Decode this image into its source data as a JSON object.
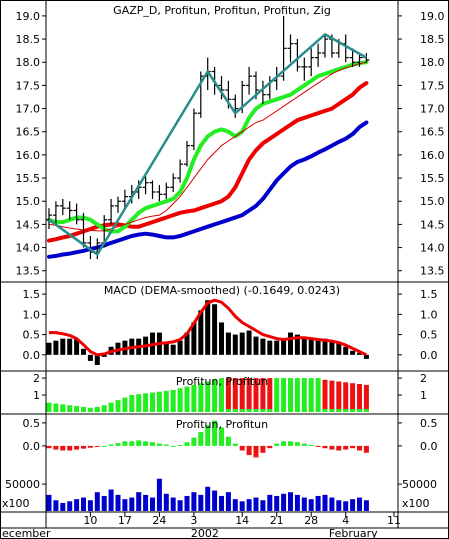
{
  "chart_data": [
    {
      "type": "line",
      "panel": "price",
      "title": "GAZP_D, Profitun, Profitun, Profitun, Zig",
      "ylim": [
        13.3,
        19.3
      ],
      "yticks": [
        "13.5",
        "14.0",
        "14.5",
        "15.0",
        "15.5",
        "16.0",
        "16.5",
        "17.0",
        "17.5",
        "18.0",
        "18.5",
        "19.0"
      ],
      "grid": false,
      "bars": [
        {
          "o": 14.6,
          "h": 14.85,
          "l": 14.4,
          "c": 14.7
        },
        {
          "o": 14.7,
          "h": 15.0,
          "l": 14.5,
          "c": 14.9
        },
        {
          "o": 14.9,
          "h": 15.05,
          "l": 14.7,
          "c": 14.85
        },
        {
          "o": 14.85,
          "h": 15.0,
          "l": 14.6,
          "c": 14.8
        },
        {
          "o": 14.8,
          "h": 14.95,
          "l": 14.5,
          "c": 14.6
        },
        {
          "o": 14.6,
          "h": 14.75,
          "l": 14.0,
          "c": 14.1
        },
        {
          "o": 14.1,
          "h": 14.25,
          "l": 13.75,
          "c": 13.9
        },
        {
          "o": 13.9,
          "h": 14.2,
          "l": 13.75,
          "c": 14.1
        },
        {
          "o": 14.1,
          "h": 14.7,
          "l": 14.0,
          "c": 14.6
        },
        {
          "o": 14.6,
          "h": 15.05,
          "l": 14.5,
          "c": 14.9
        },
        {
          "o": 14.9,
          "h": 15.1,
          "l": 14.75,
          "c": 15.0
        },
        {
          "o": 15.0,
          "h": 15.25,
          "l": 14.85,
          "c": 15.1
        },
        {
          "o": 15.1,
          "h": 15.35,
          "l": 14.95,
          "c": 15.2
        },
        {
          "o": 15.2,
          "h": 15.45,
          "l": 15.05,
          "c": 15.3
        },
        {
          "o": 15.3,
          "h": 15.55,
          "l": 15.15,
          "c": 15.4
        },
        {
          "o": 15.4,
          "h": 15.45,
          "l": 15.05,
          "c": 15.2
        },
        {
          "o": 15.2,
          "h": 15.35,
          "l": 15.0,
          "c": 15.15
        },
        {
          "o": 15.15,
          "h": 15.4,
          "l": 15.05,
          "c": 15.3
        },
        {
          "o": 15.3,
          "h": 15.6,
          "l": 15.2,
          "c": 15.5
        },
        {
          "o": 15.5,
          "h": 15.9,
          "l": 15.4,
          "c": 15.8
        },
        {
          "o": 15.8,
          "h": 16.3,
          "l": 15.75,
          "c": 16.2
        },
        {
          "o": 16.2,
          "h": 17.0,
          "l": 16.1,
          "c": 16.9
        },
        {
          "o": 16.9,
          "h": 17.8,
          "l": 16.8,
          "c": 17.7
        },
        {
          "o": 17.7,
          "h": 18.1,
          "l": 17.4,
          "c": 17.8
        },
        {
          "o": 17.8,
          "h": 17.9,
          "l": 17.3,
          "c": 17.5
        },
        {
          "o": 17.5,
          "h": 17.7,
          "l": 17.2,
          "c": 17.4
        },
        {
          "o": 17.4,
          "h": 17.6,
          "l": 17.0,
          "c": 17.2
        },
        {
          "o": 17.2,
          "h": 17.3,
          "l": 16.8,
          "c": 17.0
        },
        {
          "o": 17.0,
          "h": 17.6,
          "l": 16.9,
          "c": 17.5
        },
        {
          "o": 17.5,
          "h": 17.9,
          "l": 17.3,
          "c": 17.7
        },
        {
          "o": 17.7,
          "h": 17.8,
          "l": 17.2,
          "c": 17.4
        },
        {
          "o": 17.4,
          "h": 17.6,
          "l": 17.1,
          "c": 17.3
        },
        {
          "o": 17.3,
          "h": 17.7,
          "l": 17.2,
          "c": 17.6
        },
        {
          "o": 17.6,
          "h": 17.9,
          "l": 17.4,
          "c": 17.7
        },
        {
          "o": 17.7,
          "h": 19.0,
          "l": 17.6,
          "c": 18.3
        },
        {
          "o": 18.3,
          "h": 18.6,
          "l": 18.0,
          "c": 18.4
        },
        {
          "o": 18.4,
          "h": 18.5,
          "l": 17.8,
          "c": 17.9
        },
        {
          "o": 17.9,
          "h": 18.1,
          "l": 17.6,
          "c": 17.9
        },
        {
          "o": 17.9,
          "h": 18.3,
          "l": 17.7,
          "c": 18.1
        },
        {
          "o": 18.1,
          "h": 18.4,
          "l": 17.9,
          "c": 18.2
        },
        {
          "o": 18.2,
          "h": 18.6,
          "l": 18.1,
          "c": 18.5
        },
        {
          "o": 18.5,
          "h": 18.6,
          "l": 18.1,
          "c": 18.2
        },
        {
          "o": 18.2,
          "h": 18.5,
          "l": 18.1,
          "c": 18.4
        },
        {
          "o": 18.4,
          "h": 18.6,
          "l": 18.0,
          "c": 18.1
        },
        {
          "o": 18.1,
          "h": 18.3,
          "l": 17.9,
          "c": 18.0
        },
        {
          "o": 18.0,
          "h": 18.2,
          "l": 17.9,
          "c": 18.1
        },
        {
          "o": 18.1,
          "h": 18.2,
          "l": 18.0,
          "c": 18.05
        }
      ],
      "series": [
        {
          "color": "#0000cc",
          "values": [
            13.8,
            13.82,
            13.85,
            13.87,
            13.9,
            13.93,
            13.97,
            14.0,
            14.05,
            14.1,
            14.15,
            14.2,
            14.25,
            14.28,
            14.3,
            14.28,
            14.25,
            14.22,
            14.22,
            14.25,
            14.3,
            14.35,
            14.4,
            14.45,
            14.5,
            14.55,
            14.6,
            14.65,
            14.7,
            14.8,
            14.9,
            15.05,
            15.25,
            15.45,
            15.6,
            15.75,
            15.85,
            15.9,
            15.97,
            16.05,
            16.12,
            16.2,
            16.28,
            16.35,
            16.45,
            16.6,
            16.7
          ]
        },
        {
          "color": "#ee0000",
          "values": [
            14.15,
            14.18,
            14.22,
            14.25,
            14.3,
            14.35,
            14.4,
            14.45,
            14.48,
            14.5,
            14.5,
            14.48,
            14.45,
            14.45,
            14.5,
            14.55,
            14.6,
            14.65,
            14.7,
            14.75,
            14.78,
            14.8,
            14.85,
            14.9,
            14.95,
            15.0,
            15.1,
            15.3,
            15.6,
            15.9,
            16.1,
            16.25,
            16.35,
            16.45,
            16.55,
            16.65,
            16.75,
            16.8,
            16.85,
            16.9,
            16.95,
            17.0,
            17.1,
            17.2,
            17.3,
            17.45,
            17.55
          ]
        },
        {
          "color": "#22ee22",
          "values": [
            14.6,
            14.55,
            14.55,
            14.6,
            14.65,
            14.65,
            14.6,
            14.5,
            14.4,
            14.35,
            14.35,
            14.45,
            14.6,
            14.75,
            14.85,
            14.9,
            14.95,
            15.0,
            15.05,
            15.2,
            15.5,
            15.9,
            16.2,
            16.4,
            16.5,
            16.55,
            16.5,
            16.4,
            16.5,
            16.8,
            17.0,
            17.1,
            17.15,
            17.2,
            17.25,
            17.3,
            17.4,
            17.5,
            17.6,
            17.7,
            17.75,
            17.8,
            17.85,
            17.9,
            17.95,
            17.98,
            18.0
          ]
        },
        {
          "color": "#dd0000",
          "values": [
            14.5,
            14.48,
            14.45,
            14.42,
            14.4,
            14.38,
            14.37,
            14.36,
            14.36,
            14.4,
            14.45,
            14.5,
            14.55,
            14.6,
            14.65,
            14.68,
            14.7,
            14.8,
            14.95,
            15.1,
            15.3,
            15.5,
            15.7,
            15.9,
            16.05,
            16.2,
            16.3,
            16.4,
            16.5,
            16.6,
            16.7,
            16.75,
            16.85,
            16.95,
            17.05,
            17.15,
            17.25,
            17.35,
            17.45,
            17.55,
            17.65,
            17.75,
            17.82,
            17.88,
            17.92,
            17.97,
            18.0
          ]
        },
        {
          "color": "#2a8c8c",
          "zigzag": true,
          "points": [
            [
              0,
              14.6
            ],
            [
              7,
              13.85
            ],
            [
              23,
              17.8
            ],
            [
              27,
              16.9
            ],
            [
              40,
              18.6
            ],
            [
              46,
              18.1
            ]
          ]
        }
      ]
    },
    {
      "type": "bar",
      "panel": "macd",
      "title": "MACD (DEMA-smoothed) (-0.1649, 0.0243)",
      "ylim": [
        -0.35,
        1.75
      ],
      "yticks": [
        "0.0",
        "0.5",
        "1.0",
        "1.5"
      ],
      "values": [
        0.3,
        0.35,
        0.4,
        0.4,
        0.4,
        0.15,
        -0.15,
        -0.25,
        -0.05,
        0.2,
        0.3,
        0.35,
        0.4,
        0.4,
        0.45,
        0.55,
        0.55,
        0.3,
        0.25,
        0.35,
        0.55,
        0.8,
        1.1,
        1.35,
        1.25,
        0.8,
        0.55,
        0.5,
        0.55,
        0.6,
        0.45,
        0.4,
        0.35,
        0.35,
        0.4,
        0.55,
        0.5,
        0.45,
        0.4,
        0.35,
        0.4,
        0.35,
        0.3,
        0.2,
        0.1,
        0.05,
        -0.1
      ],
      "signal": [
        0.55,
        0.55,
        0.52,
        0.48,
        0.4,
        0.25,
        0.08,
        0.0,
        0.02,
        0.08,
        0.12,
        0.15,
        0.18,
        0.2,
        0.22,
        0.25,
        0.28,
        0.3,
        0.32,
        0.38,
        0.52,
        0.78,
        1.05,
        1.28,
        1.35,
        1.3,
        1.15,
        0.95,
        0.8,
        0.7,
        0.6,
        0.5,
        0.45,
        0.4,
        0.38,
        0.4,
        0.42,
        0.42,
        0.4,
        0.38,
        0.36,
        0.34,
        0.3,
        0.24,
        0.16,
        0.08,
        0.0
      ],
      "colors": {
        "bars": "#000000",
        "signal": "#ee0000"
      }
    },
    {
      "type": "bar",
      "panel": "profitun-1",
      "title": "Profitun, Profitun",
      "ylim": [
        0,
        2.3
      ],
      "yticks": [
        "1",
        "2"
      ],
      "values": [
        0.55,
        0.5,
        0.45,
        0.4,
        0.35,
        0.3,
        0.25,
        0.3,
        0.4,
        0.55,
        0.7,
        0.85,
        1.0,
        1.05,
        1.1,
        1.15,
        1.2,
        1.25,
        1.3,
        1.4,
        1.5,
        1.6,
        1.7,
        1.8,
        1.9,
        2.0,
        2.0,
        2.0,
        2.0,
        2.0,
        2.0,
        2.0,
        2.0,
        2.0,
        2.0,
        2.0,
        2.0,
        2.0,
        2.0,
        2.0,
        1.9,
        1.85,
        1.8,
        1.75,
        1.7,
        1.65,
        1.6
      ],
      "colors_by_bar": [
        "g",
        "g",
        "g",
        "g",
        "g",
        "g",
        "g",
        "g",
        "g",
        "g",
        "g",
        "g",
        "g",
        "g",
        "g",
        "g",
        "g",
        "g",
        "g",
        "g",
        "g",
        "g",
        "g",
        "g",
        "g",
        "g",
        "r",
        "r",
        "r",
        "r",
        "r",
        "r",
        "r",
        "g",
        "g",
        "g",
        "g",
        "g",
        "g",
        "g",
        "r",
        "r",
        "r",
        "r",
        "r",
        "r",
        "r"
      ],
      "colors": {
        "g": "#22ee22",
        "r": "#ee1111",
        "base": "#22ee22"
      }
    },
    {
      "type": "bar",
      "panel": "profitun-2",
      "title": "Profitun, Profitun",
      "ylim": [
        -0.35,
        0.65
      ],
      "yticks": [
        "0.0",
        "0.5"
      ],
      "values": [
        -0.05,
        -0.08,
        -0.1,
        -0.1,
        -0.08,
        -0.06,
        -0.04,
        -0.02,
        0.0,
        0.03,
        0.06,
        0.1,
        0.1,
        0.12,
        0.1,
        0.08,
        0.05,
        0.03,
        0.0,
        0.02,
        0.08,
        0.18,
        0.3,
        0.45,
        0.55,
        0.4,
        0.2,
        0.05,
        -0.1,
        -0.2,
        -0.25,
        -0.15,
        -0.05,
        0.05,
        0.1,
        0.1,
        0.08,
        0.05,
        0.02,
        -0.02,
        -0.05,
        -0.08,
        -0.1,
        -0.08,
        -0.05,
        -0.1,
        -0.15
      ],
      "colors": {
        "pos": "#22ee22",
        "neg": "#ee1111"
      },
      "volume_label": "50000",
      "volume_unit": "x100",
      "volume": [
        30000,
        20000,
        15000,
        18000,
        22000,
        25000,
        20000,
        35000,
        28000,
        40000,
        30000,
        22000,
        25000,
        35000,
        30000,
        25000,
        60000,
        32000,
        25000,
        20000,
        28000,
        35000,
        30000,
        45000,
        38000,
        28000,
        35000,
        22000,
        18000,
        22000,
        25000,
        20000,
        30000,
        28000,
        32000,
        35000,
        30000,
        25000,
        22000,
        28000,
        30000,
        25000,
        20000,
        18000,
        22000,
        25000,
        20000
      ],
      "volume_color": "#0000cc"
    },
    {
      "type": "axis",
      "panel": "x-axis",
      "x_ticks": [
        {
          "label": "10",
          "bar": 6
        },
        {
          "label": "17",
          "bar": 11
        },
        {
          "label": "24",
          "bar": 16
        },
        {
          "label": "3",
          "bar": 21
        },
        {
          "label": "14",
          "bar": 28
        },
        {
          "label": "21",
          "bar": 33
        },
        {
          "label": "28",
          "bar": 38
        },
        {
          "label": "4",
          "bar": 43
        },
        {
          "label": "11",
          "bar": 50
        }
      ],
      "month_labels": [
        {
          "label": "ecember",
          "bar": -1
        },
        {
          "label": "2002",
          "bar": 21
        },
        {
          "label": "February",
          "bar": 41
        }
      ]
    }
  ]
}
